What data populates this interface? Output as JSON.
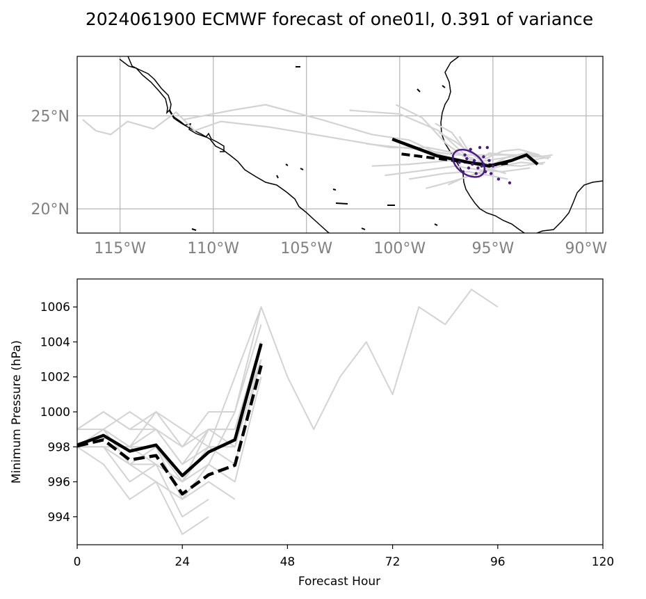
{
  "figure": {
    "title": "2024061900 ECMWF forecast of one01l, 0.391 of variance"
  },
  "map": {
    "lon_range": [
      -117.3,
      -89.1
    ],
    "lat_range": [
      18.7,
      28.2
    ],
    "lon_ticks": [
      {
        "lon": -115,
        "label": "115°W"
      },
      {
        "lon": -110,
        "label": "110°W"
      },
      {
        "lon": -105,
        "label": "105°W"
      },
      {
        "lon": -100,
        "label": "100°W"
      },
      {
        "lon": -95,
        "label": "95°W"
      },
      {
        "lon": -90,
        "label": "90°W"
      }
    ],
    "lat_ticks": [
      {
        "lat": 25,
        "label": "25°N"
      },
      {
        "lat": 20,
        "label": "20°N"
      }
    ],
    "colors": {
      "coast": "#000000",
      "grid": "#b4b4b4",
      "ensemble": "#d3d3d3",
      "ellipse": "#4b1a8c",
      "mean": "#000000"
    },
    "mean_track_solid": [
      [
        -100.4,
        23.75
      ],
      [
        -98.0,
        22.85
      ],
      [
        -96.3,
        22.5
      ],
      [
        -95.2,
        22.3
      ],
      [
        -94.0,
        22.6
      ],
      [
        -93.2,
        22.9
      ],
      [
        -92.6,
        22.4
      ]
    ],
    "mean_track_dashed": [
      [
        -99.9,
        22.95
      ],
      [
        -97.5,
        22.65
      ],
      [
        -96.0,
        22.45
      ],
      [
        -95.0,
        22.35
      ],
      [
        -94.2,
        22.45
      ]
    ],
    "ellipse": {
      "center": [
        -96.3,
        22.45
      ],
      "semi_major_deg": 0.95,
      "semi_minor_deg": 0.6,
      "rotation_deg": -35
    },
    "ensemble_tracks": [
      [
        [
          -117.0,
          24.8
        ],
        [
          -116.3,
          24.2
        ],
        [
          -115.5,
          24.0
        ],
        [
          -114.6,
          24.7
        ],
        [
          -113.2,
          24.3
        ],
        [
          -112.0,
          25.2
        ],
        [
          -111.0,
          24.2
        ],
        [
          -109.6,
          24.7
        ],
        [
          -107.0,
          24.4
        ],
        [
          -104.0,
          23.9
        ],
        [
          -100.5,
          23.3
        ],
        [
          -98.5,
          23.3
        ],
        [
          -97.0,
          23.0
        ],
        [
          -96.0,
          22.7
        ]
      ],
      [
        [
          -111.6,
          24.8
        ],
        [
          -109.0,
          25.3
        ],
        [
          -107.2,
          25.6
        ],
        [
          -104.2,
          24.8
        ],
        [
          -101.5,
          24.0
        ],
        [
          -99.5,
          23.7
        ],
        [
          -97.8,
          22.9
        ],
        [
          -96.5,
          22.6
        ]
      ],
      [
        [
          -102.7,
          25.3
        ],
        [
          -100.0,
          25.1
        ],
        [
          -97.9,
          24.2
        ],
        [
          -96.6,
          23.0
        ],
        [
          -95.8,
          22.4
        ]
      ],
      [
        [
          -101.5,
          22.3
        ],
        [
          -99.5,
          22.4
        ],
        [
          -97.3,
          22.6
        ],
        [
          -96.0,
          22.5
        ],
        [
          -94.0,
          22.8
        ],
        [
          -92.5,
          22.8
        ],
        [
          -91.8,
          22.9
        ]
      ],
      [
        [
          -101.8,
          23.5
        ],
        [
          -99.0,
          23.2
        ],
        [
          -97.0,
          22.9
        ],
        [
          -95.0,
          22.9
        ],
        [
          -93.0,
          22.9
        ],
        [
          -92.0,
          22.7
        ]
      ],
      [
        [
          -100.2,
          25.6
        ],
        [
          -98.8,
          24.9
        ],
        [
          -97.5,
          23.5
        ],
        [
          -96.4,
          22.7
        ],
        [
          -95.2,
          22.4
        ],
        [
          -93.5,
          22.3
        ],
        [
          -92.2,
          22.5
        ]
      ],
      [
        [
          -100.8,
          21.8
        ],
        [
          -98.5,
          22.1
        ],
        [
          -97.0,
          22.3
        ],
        [
          -95.8,
          22.1
        ],
        [
          -94.5,
          22.0
        ],
        [
          -93.0,
          22.2
        ]
      ],
      [
        [
          -99.5,
          21.6
        ],
        [
          -97.6,
          21.9
        ],
        [
          -96.3,
          22.0
        ],
        [
          -95.2,
          21.8
        ],
        [
          -94.2,
          21.6
        ]
      ],
      [
        [
          -98.6,
          21.1
        ],
        [
          -97.1,
          21.5
        ],
        [
          -95.8,
          21.9
        ],
        [
          -95.0,
          22.4
        ],
        [
          -94.2,
          22.8
        ],
        [
          -93.2,
          23.0
        ],
        [
          -92.2,
          22.8
        ]
      ],
      [
        [
          -97.9,
          24.1
        ],
        [
          -97.0,
          23.6
        ],
        [
          -96.2,
          23.0
        ],
        [
          -95.4,
          22.7
        ],
        [
          -94.5,
          23.1
        ],
        [
          -93.6,
          23.2
        ],
        [
          -92.5,
          22.9
        ]
      ],
      [
        [
          -96.8,
          23.9
        ],
        [
          -96.3,
          23.1
        ],
        [
          -95.7,
          22.6
        ],
        [
          -95.2,
          23.0
        ],
        [
          -94.1,
          22.9
        ],
        [
          -93.0,
          22.6
        ],
        [
          -91.9,
          22.8
        ]
      ],
      [
        [
          -98.1,
          24.6
        ],
        [
          -97.2,
          24.1
        ],
        [
          -96.6,
          23.3
        ],
        [
          -96.0,
          22.9
        ],
        [
          -95.3,
          22.2
        ],
        [
          -94.3,
          21.9
        ]
      ],
      [
        [
          -97.4,
          21.3
        ],
        [
          -96.5,
          21.7
        ],
        [
          -95.6,
          22.0
        ],
        [
          -94.6,
          22.3
        ],
        [
          -93.5,
          22.5
        ],
        [
          -92.3,
          22.4
        ]
      ]
    ],
    "ensemble_points": [
      [
        -96.8,
        22.5
      ],
      [
        -96.5,
        22.9
      ],
      [
        -96.3,
        22.2
      ],
      [
        -96.0,
        22.6
      ],
      [
        -95.9,
        21.9
      ],
      [
        -95.6,
        22.3
      ],
      [
        -95.4,
        22.0
      ],
      [
        -95.2,
        22.6
      ],
      [
        -96.2,
        23.2
      ],
      [
        -95.7,
        23.3
      ],
      [
        -95.3,
        23.3
      ],
      [
        -96.6,
        22.0
      ],
      [
        -96.1,
        22.4
      ],
      [
        -95.5,
        22.8
      ],
      [
        -95.1,
        21.9
      ],
      [
        -94.7,
        21.6
      ],
      [
        -94.1,
        21.4
      ],
      [
        -96.4,
        22.7
      ],
      [
        -95.8,
        22.2
      ],
      [
        -95.0,
        22.3
      ]
    ]
  },
  "chart_data": {
    "type": "line",
    "xlabel": "Forecast Hour",
    "ylabel": "Minimum Pressure (hPa)",
    "xlim": [
      0,
      120
    ],
    "ylim": [
      992.4,
      1007.6
    ],
    "xticks": [
      0,
      24,
      48,
      72,
      96,
      120
    ],
    "yticks": [
      994,
      996,
      998,
      1000,
      1002,
      1004,
      1006
    ],
    "series": [
      {
        "x": [
          0,
          6,
          12,
          18,
          24,
          30,
          36,
          42
        ],
        "values": [
          998.1,
          998.65,
          997.75,
          998.1,
          996.35,
          997.7,
          998.4,
          1003.9
        ],
        "style": "solid",
        "color": "#000000"
      },
      {
        "x": [
          0,
          6,
          12,
          18,
          24,
          30,
          36,
          42
        ],
        "values": [
          998.05,
          998.4,
          997.25,
          997.5,
          995.3,
          996.4,
          996.95,
          1002.65
        ],
        "style": "dashed",
        "color": "#000000"
      },
      {
        "x": [
          0,
          6,
          12,
          18,
          24,
          30,
          36,
          42,
          48,
          54,
          60,
          66,
          72,
          78,
          84,
          90,
          96
        ],
        "values": [
          998,
          998,
          997,
          996,
          995,
          997,
          1000,
          1006,
          1002,
          999,
          1002,
          1004,
          1001,
          1006,
          1005,
          1007,
          1006
        ],
        "style": "ensemble",
        "color": "#d3d3d3"
      },
      {
        "x": [
          0,
          6,
          12,
          18,
          24,
          30,
          36,
          42
        ],
        "values": [
          999,
          1000,
          999,
          1000,
          998,
          1000,
          1000,
          1005
        ],
        "style": "ensemble",
        "color": "#d3d3d3"
      },
      {
        "x": [
          0,
          6,
          12,
          18,
          24,
          30,
          36,
          42
        ],
        "values": [
          998,
          999,
          998,
          999,
          997,
          999,
          999,
          1004
        ],
        "style": "ensemble",
        "color": "#d3d3d3"
      },
      {
        "x": [
          0,
          6,
          12,
          18,
          24,
          30,
          36,
          42
        ],
        "values": [
          998,
          998,
          997,
          997,
          996,
          998,
          998,
          1003
        ],
        "style": "ensemble",
        "color": "#d3d3d3"
      },
      {
        "x": [
          0,
          6,
          12,
          18,
          24,
          30,
          36,
          42
        ],
        "values": [
          999,
          1000,
          999,
          999,
          997,
          998,
          1002,
          1006
        ],
        "style": "ensemble",
        "color": "#d3d3d3"
      },
      {
        "x": [
          0,
          6,
          12,
          18,
          24,
          30,
          36,
          42
        ],
        "values": [
          998,
          999,
          1000,
          999,
          998,
          999,
          999,
          1003
        ],
        "style": "ensemble",
        "color": "#d3d3d3"
      },
      {
        "x": [
          0,
          6,
          12,
          18,
          24,
          30,
          36,
          42
        ],
        "values": [
          998,
          998,
          998,
          997,
          996,
          997,
          996,
          1002
        ],
        "style": "ensemble",
        "color": "#d3d3d3"
      },
      {
        "x": [
          0,
          6,
          12,
          18,
          24,
          30
        ],
        "values": [
          998,
          997,
          995,
          996,
          993,
          994
        ],
        "style": "ensemble",
        "color": "#d3d3d3"
      },
      {
        "x": [
          0,
          6,
          12,
          18,
          24,
          30
        ],
        "values": [
          998,
          998,
          996,
          997,
          994,
          995
        ],
        "style": "ensemble",
        "color": "#d3d3d3"
      },
      {
        "x": [
          0,
          6,
          12,
          18,
          24,
          30,
          36
        ],
        "values": [
          998,
          999,
          998,
          998,
          995,
          996,
          995
        ],
        "style": "ensemble",
        "color": "#d3d3d3"
      },
      {
        "x": [
          0,
          6,
          12,
          18,
          24,
          30,
          36,
          42
        ],
        "values": [
          999,
          999,
          998,
          1000,
          999,
          998,
          997,
          1003
        ],
        "style": "ensemble",
        "color": "#d3d3d3"
      },
      {
        "x": [
          0,
          6,
          12,
          18,
          24,
          30,
          36,
          42
        ],
        "values": [
          998,
          999,
          997,
          998,
          996,
          999,
          998,
          1004
        ],
        "style": "ensemble",
        "color": "#d3d3d3"
      }
    ]
  }
}
